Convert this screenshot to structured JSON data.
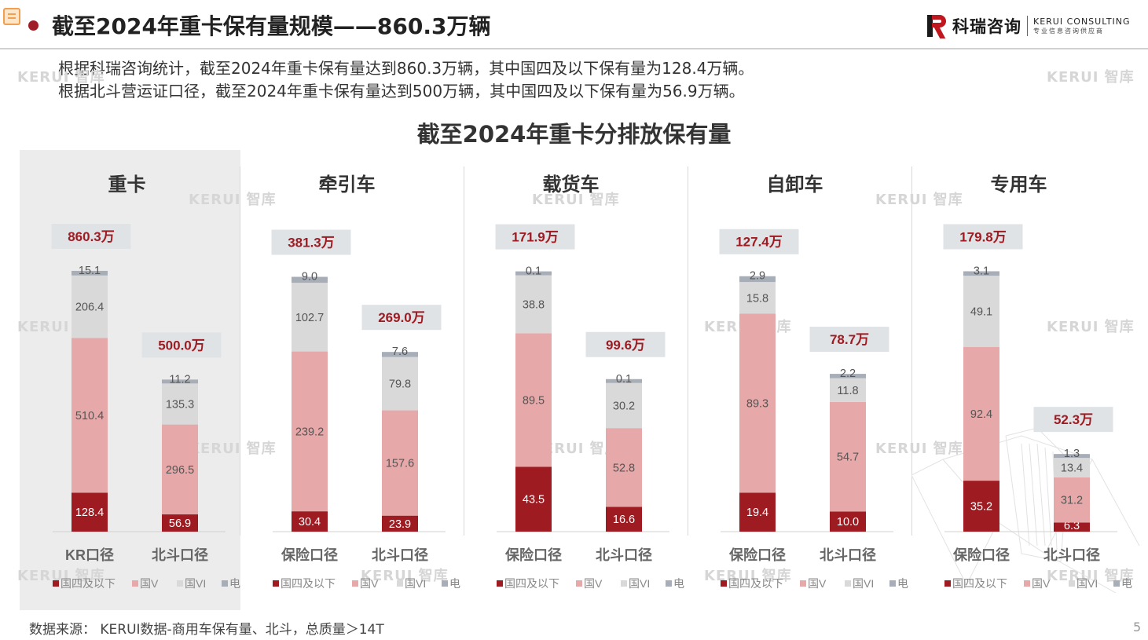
{
  "page": {
    "title": "截至2024年重卡保有量规模——860.3万辆",
    "page_number": "5"
  },
  "logo": {
    "cn": "科瑞咨询",
    "en_line1": "KERUI CONSULTING",
    "en_line2": "专业信息咨询供应商"
  },
  "summary": [
    "根据科瑞咨询统计，截至2024年重卡保有量达到860.3万辆，其中国四及以下保有量为128.4万辆。",
    "根据北斗营运证口径，截至2024年重卡保有量达到500万辆，其中国四及以下保有量为56.9万辆。"
  ],
  "watermark": "KERUI 智库",
  "source": "数据来源： KERUI数据-商用车保有量、北斗，总质量＞14T",
  "colors": {
    "ns_le4": "#9e1b22",
    "ns_5": "#e6a8a8",
    "ns_6": "#d9d9d9",
    "ev": "#a8aeb8",
    "total_box": "#dfe3e6",
    "total_text": "#9e1b22",
    "accent": "#a01e28"
  },
  "chart_data": {
    "type": "bar",
    "stacked": true,
    "title": "截至2024年重卡分排放保有量",
    "legend": [
      "国四及以下",
      "国V",
      "国VI",
      "电"
    ],
    "legend_position": "bottom",
    "grid": false,
    "panels": [
      {
        "name": "重卡",
        "bars": [
          {
            "label": "KR口径",
            "total": "860.3万",
            "values": [
              128.4,
              510.4,
              206.4,
              15.1
            ]
          },
          {
            "label": "北斗口径",
            "total": "500.0万",
            "values": [
              56.9,
              296.5,
              135.3,
              11.2
            ]
          }
        ]
      },
      {
        "name": "牵引车",
        "bars": [
          {
            "label": "保险口径",
            "total": "381.3万",
            "values": [
              30.4,
              239.2,
              102.7,
              9.0
            ]
          },
          {
            "label": "北斗口径",
            "total": "269.0万",
            "values": [
              23.9,
              157.6,
              79.8,
              7.6
            ]
          }
        ]
      },
      {
        "name": "载货车",
        "bars": [
          {
            "label": "保险口径",
            "total": "171.9万",
            "values": [
              43.5,
              89.5,
              38.8,
              0.1
            ]
          },
          {
            "label": "北斗口径",
            "total": "99.6万",
            "values": [
              16.6,
              52.8,
              30.2,
              0.1
            ]
          }
        ]
      },
      {
        "name": "自卸车",
        "bars": [
          {
            "label": "保险口径",
            "total": "127.4万",
            "values": [
              19.4,
              89.3,
              15.8,
              2.9
            ]
          },
          {
            "label": "北斗口径",
            "total": "78.7万",
            "values": [
              10.0,
              54.7,
              11.8,
              2.2
            ]
          }
        ]
      },
      {
        "name": "专用车",
        "bars": [
          {
            "label": "保险口径",
            "total": "179.8万",
            "values": [
              35.2,
              92.4,
              49.1,
              3.1
            ]
          },
          {
            "label": "北斗口径",
            "total": "52.3万",
            "values": [
              6.3,
              31.2,
              13.4,
              1.3
            ]
          }
        ]
      }
    ]
  }
}
